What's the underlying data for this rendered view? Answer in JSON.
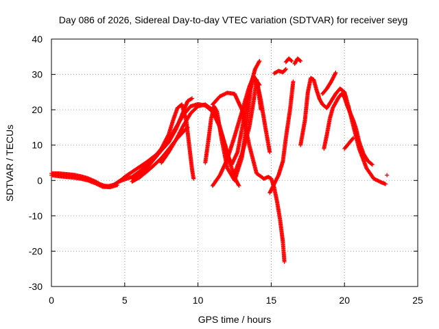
{
  "chart_data": {
    "type": "scatter",
    "title": "Day 086 of 2026, Sidereal Day-to-day VTEC variation (SDTVAR) for receiver seyg",
    "xlabel": "GPS time / hours",
    "ylabel": "SDTVAR / TECUs",
    "xlim": [
      0,
      25
    ],
    "ylim": [
      -30,
      40
    ],
    "xticks": [
      0,
      5,
      10,
      15,
      20,
      25
    ],
    "yticks": [
      -30,
      -20,
      -10,
      0,
      10,
      20,
      30,
      40
    ],
    "xtick_labels": [
      "0",
      "5",
      "10",
      "15",
      "20",
      "25"
    ],
    "ytick_labels": [
      "-30",
      "-20",
      "-10",
      "0",
      "10",
      "20",
      "30",
      "40"
    ],
    "grid": true,
    "marker": "+",
    "color": "#ff0000",
    "series": [
      {
        "name": "s1",
        "x": [
          0.0,
          0.5,
          1.0,
          1.5,
          2.0,
          2.5,
          3.0,
          3.3,
          3.6,
          3.9,
          4.2,
          4.5,
          4.8,
          5.1,
          5.5,
          6.0,
          6.5,
          7.0,
          7.5,
          8.0,
          8.5,
          9.0,
          9.3,
          9.6
        ],
        "y": [
          2.0,
          2.0,
          1.8,
          1.6,
          1.2,
          0.6,
          -0.3,
          -1.0,
          -1.5,
          -1.6,
          -1.3,
          -0.6,
          0.3,
          1.3,
          2.4,
          3.8,
          5.2,
          6.8,
          8.5,
          10.8,
          14.5,
          19.5,
          22.5,
          23.2
        ]
      },
      {
        "name": "s2",
        "x": [
          0.0,
          0.5,
          1.0,
          1.5,
          2.0,
          2.5,
          3.0,
          3.5,
          4.0,
          4.5
        ],
        "y": [
          1.5,
          1.2,
          1.0,
          0.8,
          0.5,
          0.0,
          -0.8,
          -1.8,
          -1.9,
          -1.3
        ]
      },
      {
        "name": "s3",
        "x": [
          4.5,
          5.0,
          5.5,
          6.0,
          6.5,
          7.0,
          7.5,
          8.0,
          8.3,
          8.6,
          8.9,
          9.2,
          9.4,
          9.6,
          9.7
        ],
        "y": [
          -0.5,
          0.3,
          1.0,
          2.5,
          4.5,
          6.5,
          9.0,
          13.0,
          17.0,
          20.5,
          21.5,
          17.0,
          10.0,
          3.0,
          0.5
        ]
      },
      {
        "name": "s4",
        "x": [
          5.5,
          6.0,
          6.5,
          7.0,
          7.5,
          8.0,
          8.5,
          9.0,
          9.5,
          10.0,
          10.5,
          11.0,
          11.5,
          12.0,
          12.3,
          12.6,
          12.8
        ],
        "y": [
          0.5,
          1.5,
          3.5,
          6.0,
          8.5,
          11.5,
          15.0,
          18.5,
          21.0,
          21.6,
          21.2,
          19.5,
          15.0,
          8.0,
          3.5,
          0.0,
          -1.5
        ]
      },
      {
        "name": "s5",
        "x": [
          5.5,
          6.0,
          6.5,
          7.0,
          7.5,
          8.0,
          8.5,
          9.0,
          9.3
        ],
        "y": [
          -0.3,
          0.8,
          2.5,
          4.3,
          6.3,
          8.8,
          11.5,
          13.8,
          15.0
        ]
      },
      {
        "name": "s6",
        "x": [
          7.5,
          8.0,
          8.5,
          9.0,
          9.5,
          10.0,
          10.5,
          11.0,
          11.4,
          11.7,
          12.0,
          12.3,
          12.7,
          13.0,
          13.3,
          13.6,
          13.9,
          14.2
        ],
        "y": [
          5.0,
          8.0,
          11.5,
          15.5,
          19.0,
          21.0,
          21.5,
          20.0,
          16.5,
          12.0,
          7.5,
          4.5,
          8.0,
          14.5,
          21.0,
          27.0,
          31.5,
          33.8
        ]
      },
      {
        "name": "s7",
        "x": [
          11.0,
          11.5,
          12.0,
          12.5,
          13.0,
          13.5,
          14.0,
          14.5,
          14.8,
          15.0,
          15.2,
          15.4,
          15.6,
          15.8,
          15.9
        ],
        "y": [
          21.5,
          23.8,
          24.8,
          24.5,
          20.0,
          10.0,
          2.0,
          0.5,
          1.0,
          0.5,
          -2.0,
          -6.0,
          -11.0,
          -17.5,
          -23.0
        ]
      },
      {
        "name": "s8",
        "x": [
          10.5,
          10.7,
          10.9,
          11.1,
          11.3,
          11.6,
          12.0,
          12.5,
          13.0,
          13.3,
          13.6,
          13.8,
          14.1,
          14.3
        ],
        "y": [
          5.0,
          11.0,
          17.5,
          21.0,
          19.5,
          12.0,
          3.5,
          0.0,
          6.5,
          15.0,
          26.0,
          29.5,
          26.0,
          20.0
        ]
      },
      {
        "name": "s9",
        "x": [
          11.0,
          11.5,
          12.0,
          12.5,
          13.0,
          13.5,
          13.8,
          14.2
        ],
        "y": [
          -1.5,
          1.5,
          6.0,
          12.5,
          19.5,
          26.5,
          29.5,
          27.0
        ]
      },
      {
        "name": "s10",
        "x": [
          12.5,
          13.0,
          13.5,
          13.8,
          14.0,
          14.3,
          14.6,
          14.9
        ],
        "y": [
          2.0,
          7.5,
          15.0,
          22.5,
          28.5,
          22.5,
          15.0,
          8.0
        ]
      },
      {
        "name": "s11",
        "x": [
          14.9,
          15.2,
          15.5,
          15.8,
          16.0,
          16.3,
          16.5
        ],
        "y": [
          -3.5,
          -1.0,
          1.5,
          5.5,
          12.0,
          20.5,
          28.0
        ]
      },
      {
        "name": "s12",
        "x": [
          15.2,
          15.5,
          15.8,
          16.0
        ],
        "y": [
          30.3,
          31.0,
          30.6,
          31.5
        ]
      },
      {
        "name": "s13",
        "x": [
          16.0,
          16.2,
          16.4
        ],
        "y": [
          33.5,
          34.5,
          33.8
        ]
      },
      {
        "name": "s14",
        "x": [
          16.6,
          16.8,
          17.0
        ],
        "y": [
          33.0,
          34.5,
          33.8
        ]
      },
      {
        "name": "s15",
        "x": [
          17.0,
          17.3,
          17.5,
          17.7,
          17.9,
          18.1,
          18.3,
          18.5,
          18.8,
          19.1,
          19.4,
          19.7,
          20.0,
          20.3,
          20.6,
          21.0,
          21.5,
          22.0,
          22.5,
          22.8
        ],
        "y": [
          10.0,
          17.0,
          25.0,
          29.0,
          28.5,
          25.5,
          23.0,
          21.5,
          20.5,
          22.5,
          24.5,
          26.0,
          25.0,
          20.5,
          15.5,
          9.0,
          3.5,
          0.5,
          -0.5,
          -1.0
        ]
      },
      {
        "name": "s16",
        "x": [
          18.6,
          18.8,
          19.0,
          19.2,
          19.4,
          19.6,
          19.8,
          20.0,
          20.2,
          20.4,
          20.6,
          20.8,
          21.0,
          21.3,
          21.6,
          21.9
        ],
        "y": [
          9.0,
          13.0,
          17.5,
          20.5,
          22.0,
          23.5,
          24.5,
          23.5,
          21.0,
          19.0,
          17.0,
          14.5,
          11.0,
          7.5,
          5.5,
          4.5
        ]
      },
      {
        "name": "s17",
        "x": [
          18.5,
          18.8,
          19.1,
          19.4
        ],
        "y": [
          24.5,
          26.0,
          28.0,
          30.5
        ]
      },
      {
        "name": "s18",
        "x": [
          20.0,
          20.3,
          20.6
        ],
        "y": [
          9.0,
          10.5,
          12.0
        ]
      },
      {
        "name": "s19",
        "x": [
          22.9
        ],
        "y": [
          1.5
        ]
      }
    ]
  }
}
